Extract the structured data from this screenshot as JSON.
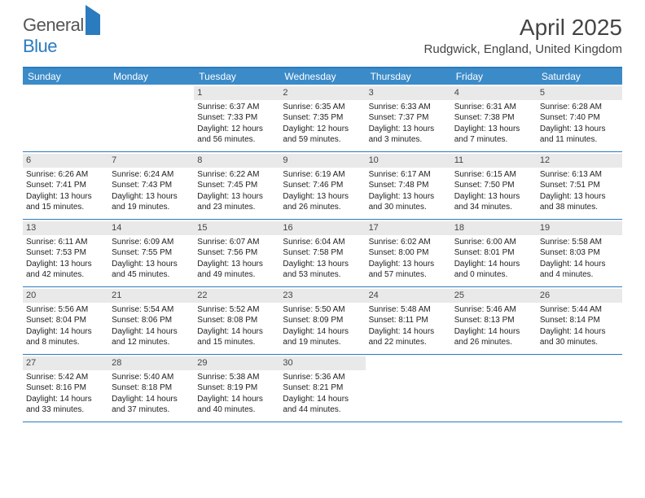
{
  "brand": {
    "part1": "General",
    "part2": "Blue"
  },
  "title": "April 2025",
  "location": "Rudgwick, England, United Kingdom",
  "colors": {
    "header_bg": "#3b8bc9",
    "border": "#2b7bbf",
    "daynum_bg": "#e9e9e9",
    "text": "#333333",
    "background": "#ffffff"
  },
  "daysOfWeek": [
    "Sunday",
    "Monday",
    "Tuesday",
    "Wednesday",
    "Thursday",
    "Friday",
    "Saturday"
  ],
  "weeks": [
    [
      {
        "blank": true
      },
      {
        "blank": true
      },
      {
        "n": "1",
        "sr": "6:37 AM",
        "ss": "7:33 PM",
        "dl": "12 hours and 56 minutes."
      },
      {
        "n": "2",
        "sr": "6:35 AM",
        "ss": "7:35 PM",
        "dl": "12 hours and 59 minutes."
      },
      {
        "n": "3",
        "sr": "6:33 AM",
        "ss": "7:37 PM",
        "dl": "13 hours and 3 minutes."
      },
      {
        "n": "4",
        "sr": "6:31 AM",
        "ss": "7:38 PM",
        "dl": "13 hours and 7 minutes."
      },
      {
        "n": "5",
        "sr": "6:28 AM",
        "ss": "7:40 PM",
        "dl": "13 hours and 11 minutes."
      }
    ],
    [
      {
        "n": "6",
        "sr": "6:26 AM",
        "ss": "7:41 PM",
        "dl": "13 hours and 15 minutes."
      },
      {
        "n": "7",
        "sr": "6:24 AM",
        "ss": "7:43 PM",
        "dl": "13 hours and 19 minutes."
      },
      {
        "n": "8",
        "sr": "6:22 AM",
        "ss": "7:45 PM",
        "dl": "13 hours and 23 minutes."
      },
      {
        "n": "9",
        "sr": "6:19 AM",
        "ss": "7:46 PM",
        "dl": "13 hours and 26 minutes."
      },
      {
        "n": "10",
        "sr": "6:17 AM",
        "ss": "7:48 PM",
        "dl": "13 hours and 30 minutes."
      },
      {
        "n": "11",
        "sr": "6:15 AM",
        "ss": "7:50 PM",
        "dl": "13 hours and 34 minutes."
      },
      {
        "n": "12",
        "sr": "6:13 AM",
        "ss": "7:51 PM",
        "dl": "13 hours and 38 minutes."
      }
    ],
    [
      {
        "n": "13",
        "sr": "6:11 AM",
        "ss": "7:53 PM",
        "dl": "13 hours and 42 minutes."
      },
      {
        "n": "14",
        "sr": "6:09 AM",
        "ss": "7:55 PM",
        "dl": "13 hours and 45 minutes."
      },
      {
        "n": "15",
        "sr": "6:07 AM",
        "ss": "7:56 PM",
        "dl": "13 hours and 49 minutes."
      },
      {
        "n": "16",
        "sr": "6:04 AM",
        "ss": "7:58 PM",
        "dl": "13 hours and 53 minutes."
      },
      {
        "n": "17",
        "sr": "6:02 AM",
        "ss": "8:00 PM",
        "dl": "13 hours and 57 minutes."
      },
      {
        "n": "18",
        "sr": "6:00 AM",
        "ss": "8:01 PM",
        "dl": "14 hours and 0 minutes."
      },
      {
        "n": "19",
        "sr": "5:58 AM",
        "ss": "8:03 PM",
        "dl": "14 hours and 4 minutes."
      }
    ],
    [
      {
        "n": "20",
        "sr": "5:56 AM",
        "ss": "8:04 PM",
        "dl": "14 hours and 8 minutes."
      },
      {
        "n": "21",
        "sr": "5:54 AM",
        "ss": "8:06 PM",
        "dl": "14 hours and 12 minutes."
      },
      {
        "n": "22",
        "sr": "5:52 AM",
        "ss": "8:08 PM",
        "dl": "14 hours and 15 minutes."
      },
      {
        "n": "23",
        "sr": "5:50 AM",
        "ss": "8:09 PM",
        "dl": "14 hours and 19 minutes."
      },
      {
        "n": "24",
        "sr": "5:48 AM",
        "ss": "8:11 PM",
        "dl": "14 hours and 22 minutes."
      },
      {
        "n": "25",
        "sr": "5:46 AM",
        "ss": "8:13 PM",
        "dl": "14 hours and 26 minutes."
      },
      {
        "n": "26",
        "sr": "5:44 AM",
        "ss": "8:14 PM",
        "dl": "14 hours and 30 minutes."
      }
    ],
    [
      {
        "n": "27",
        "sr": "5:42 AM",
        "ss": "8:16 PM",
        "dl": "14 hours and 33 minutes."
      },
      {
        "n": "28",
        "sr": "5:40 AM",
        "ss": "8:18 PM",
        "dl": "14 hours and 37 minutes."
      },
      {
        "n": "29",
        "sr": "5:38 AM",
        "ss": "8:19 PM",
        "dl": "14 hours and 40 minutes."
      },
      {
        "n": "30",
        "sr": "5:36 AM",
        "ss": "8:21 PM",
        "dl": "14 hours and 44 minutes."
      },
      {
        "blank": true
      },
      {
        "blank": true
      },
      {
        "blank": true
      }
    ]
  ],
  "labels": {
    "sunrise": "Sunrise:",
    "sunset": "Sunset:",
    "daylight": "Daylight:"
  }
}
